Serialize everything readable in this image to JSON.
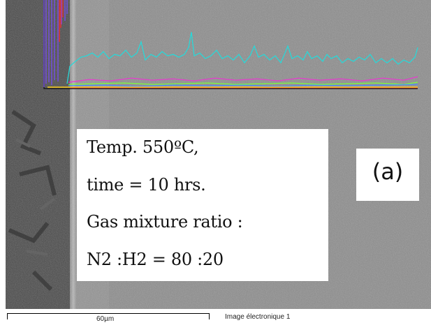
{
  "image": {
    "panel_label": "(a)",
    "info_lines": [
      "Temp. 550ºC,",
      "time = 10 hrs.",
      "Gas mixture ratio :",
      "N2 :H2 = 80 :20"
    ],
    "scale_bar_label": "60µm",
    "image_label": "Image électronique 1",
    "linescan_colors": [
      "#2ad7d7",
      "#e83ad0",
      "#ffd21e",
      "#4a8cff",
      "#7cff3a",
      "#ff2a2a",
      "#7a4cff"
    ]
  }
}
